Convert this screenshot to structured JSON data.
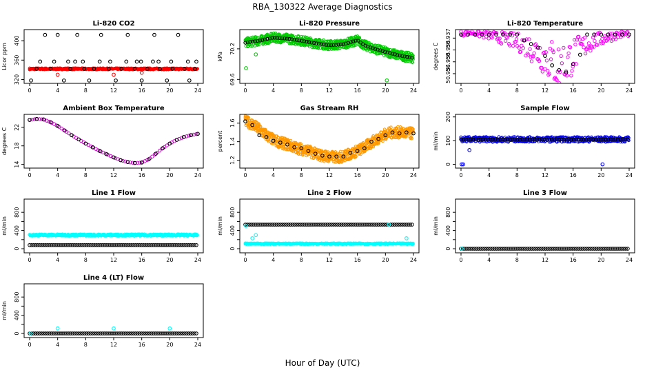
{
  "title": "RBA_130322  Average Diagnostics",
  "xlabel": "Hour of Day (UTC)",
  "chart_data": [
    {
      "type": "scatter",
      "title": "Li-820 CO2",
      "ylabel": "Licor ppm",
      "xlim": [
        0,
        24
      ],
      "ylim": [
        315,
        420
      ],
      "xticks": [
        0,
        4,
        8,
        12,
        16,
        20,
        24
      ],
      "yticks": [
        320,
        360,
        400
      ],
      "series": [
        {
          "color": "#ff0000",
          "kind": "band",
          "x_range": [
            0,
            24
          ],
          "center": 342,
          "width": 3
        },
        {
          "color": "#ff0000",
          "kind": "points",
          "x": [
            4,
            12,
            16
          ],
          "y": [
            330,
            330,
            334
          ]
        },
        {
          "color": "#000000",
          "kind": "points",
          "x": [
            0.2,
            1,
            2.2,
            3,
            4,
            4.9,
            5.8,
            6.8,
            7.8,
            8.5,
            9.2,
            10.2,
            11.3,
            12.3,
            13.1,
            14,
            15,
            16,
            16.8,
            17.8,
            18.6,
            19.6,
            20.4,
            21.2,
            22.1,
            22.8,
            23.6
          ],
          "y": [
            318,
            342,
            412,
            342,
            412,
            318,
            342,
            412,
            342,
            318,
            342,
            412,
            342,
            318,
            342,
            412,
            342,
            318,
            342,
            412,
            342,
            318,
            342,
            412,
            342,
            318,
            342
          ]
        },
        {
          "color": "#000000",
          "kind": "points",
          "x": [
            1.5,
            3.5,
            5.5,
            6.5,
            7.6,
            10,
            11.5,
            13.8,
            15.3,
            15.9,
            17.6,
            18.4,
            20.2,
            22.6,
            23.8
          ],
          "y": [
            357,
            357,
            357,
            357,
            357,
            357,
            357,
            357,
            357,
            357,
            357,
            357,
            357,
            357,
            357
          ]
        }
      ]
    },
    {
      "type": "scatter",
      "title": "Li-820 Pressure",
      "ylabel": "kPa",
      "xlim": [
        0,
        24
      ],
      "ylim": [
        69.55,
        70.55
      ],
      "xticks": [
        0,
        4,
        8,
        12,
        16,
        20,
        24
      ],
      "yticks": [
        69.6,
        70.2
      ],
      "tick_label_y": [
        69.6,
        70.2
      ],
      "series": [
        {
          "color": "#00cc00",
          "kind": "band",
          "x": [
            0,
            2,
            4,
            6,
            8,
            10,
            12,
            14,
            16,
            17,
            18,
            20,
            22,
            24
          ],
          "y": [
            70.32,
            70.36,
            70.42,
            70.4,
            70.36,
            70.31,
            70.27,
            70.29,
            70.37,
            70.27,
            70.22,
            70.14,
            70.07,
            70.02
          ],
          "width": 0.18
        },
        {
          "color": "#000000",
          "kind": "line",
          "x": [
            0,
            2,
            4,
            6,
            8,
            10,
            12,
            14,
            16,
            17,
            18,
            20,
            22,
            24
          ],
          "y": [
            70.32,
            70.36,
            70.42,
            70.4,
            70.36,
            70.31,
            70.27,
            70.29,
            70.37,
            70.27,
            70.22,
            70.14,
            70.07,
            70.02
          ]
        },
        {
          "color": "#00cc00",
          "kind": "points",
          "x": [
            0.1,
            1.5,
            20.2
          ],
          "y": [
            69.82,
            70.09,
            69.58
          ]
        }
      ]
    },
    {
      "type": "scatter",
      "title": "Li-820 Temperature",
      "ylabel": "degrees C",
      "xlim": [
        0,
        24
      ],
      "ylim": [
        50.9333,
        50.9376
      ],
      "xticks": [
        0,
        4,
        8,
        12,
        16,
        20,
        24
      ],
      "yticks": [
        50.934,
        50.935,
        50.936,
        50.937
      ],
      "tick_labels": [
        "50.934",
        "50.935",
        "50.936",
        "50.937"
      ],
      "series": [
        {
          "color": "#ff00ff",
          "kind": "scatter_cloud",
          "x_range": [
            0,
            24
          ],
          "x": [
            0,
            1.5,
            3,
            4,
            5,
            6,
            7,
            8,
            9,
            10,
            11,
            12,
            13,
            13.5,
            14,
            14.5,
            15,
            15.5,
            16,
            17,
            18,
            19,
            20,
            21,
            22,
            23,
            24
          ],
          "y": [
            50.9373,
            50.9374,
            50.9372,
            50.9371,
            50.9369,
            50.9368,
            50.9366,
            50.9364,
            50.9361,
            50.9357,
            50.9353,
            50.9348,
            50.9343,
            50.934,
            50.9336,
            50.9338,
            50.9341,
            50.9345,
            50.935,
            50.9356,
            50.9361,
            50.9365,
            50.9367,
            50.9369,
            50.9371,
            50.9372,
            50.9373
          ]
        },
        {
          "color": "#000000",
          "kind": "points",
          "x": [
            0,
            1,
            2,
            3,
            4,
            5,
            6,
            7,
            8,
            9,
            10,
            11,
            12,
            13,
            14,
            15,
            16,
            17,
            18,
            19,
            20,
            21,
            22,
            23,
            24
          ],
          "y": [
            50.9373,
            50.9373,
            50.9373,
            50.9373,
            50.9373,
            50.9373,
            50.9373,
            50.9373,
            50.9373,
            50.9368,
            50.9365,
            50.9362,
            50.9355,
            50.9347,
            50.9343,
            50.9341,
            50.9348,
            50.9356,
            50.9373,
            50.9373,
            50.9373,
            50.9373,
            50.9373,
            50.9373,
            50.9373
          ]
        }
      ]
    },
    {
      "type": "scatter",
      "title": "Ambient Box Temperature",
      "ylabel": "degrees C",
      "xlim": [
        0,
        24
      ],
      "ylim": [
        13.5,
        24.5
      ],
      "xticks": [
        0,
        4,
        8,
        12,
        16,
        20,
        24
      ],
      "yticks": [
        14,
        18,
        22
      ],
      "series": [
        {
          "color": "#cc00cc",
          "kind": "line",
          "x": [
            0,
            1,
            2,
            3,
            4,
            5,
            6,
            7,
            8,
            9,
            10,
            11,
            12,
            13,
            14,
            15,
            16,
            17,
            18,
            19,
            20,
            21,
            22,
            23,
            24
          ],
          "y": [
            23.6,
            23.8,
            23.7,
            23.1,
            22.3,
            21.3,
            20.3,
            19.4,
            18.5,
            17.7,
            16.9,
            16.2,
            15.5,
            14.9,
            14.5,
            14.3,
            14.4,
            15.1,
            16.3,
            17.5,
            18.5,
            19.3,
            19.9,
            20.3,
            20.6
          ]
        },
        {
          "color": "#000000",
          "kind": "points",
          "x": [
            0,
            1,
            2,
            3,
            4,
            5,
            6,
            7,
            8,
            9,
            10,
            11,
            12,
            13,
            14,
            15,
            16,
            17,
            18,
            19,
            20,
            21,
            22,
            23,
            24
          ],
          "y": [
            23.6,
            23.8,
            23.7,
            23.1,
            22.3,
            21.3,
            20.3,
            19.4,
            18.5,
            17.7,
            16.9,
            16.2,
            15.5,
            14.9,
            14.5,
            14.3,
            14.4,
            15.1,
            16.3,
            17.5,
            18.5,
            19.3,
            19.9,
            20.3,
            20.6
          ]
        }
      ]
    },
    {
      "type": "scatter",
      "title": "Gas Stream RH",
      "ylabel": "percent",
      "xlim": [
        0,
        24
      ],
      "ylim": [
        1.13,
        1.68
      ],
      "xticks": [
        0,
        4,
        8,
        12,
        16,
        20,
        24
      ],
      "yticks": [
        1.2,
        1.4,
        1.6
      ],
      "series": [
        {
          "color": "#ff9900",
          "kind": "band",
          "x": [
            0,
            1,
            2,
            3,
            4,
            5,
            6,
            7,
            8,
            9,
            10,
            11,
            12,
            13,
            14,
            15,
            16,
            17,
            18,
            19,
            20,
            21,
            22,
            23,
            24
          ],
          "y": [
            1.62,
            1.59,
            1.53,
            1.47,
            1.42,
            1.39,
            1.37,
            1.34,
            1.32,
            1.3,
            1.27,
            1.25,
            1.24,
            1.23,
            1.24,
            1.27,
            1.3,
            1.34,
            1.39,
            1.44,
            1.48,
            1.5,
            1.5,
            1.49,
            1.49
          ],
          "width": 0.12
        },
        {
          "color": "#000000",
          "kind": "points",
          "x": [
            0,
            1,
            2,
            3,
            4,
            5,
            6,
            7,
            8,
            9,
            10,
            11,
            12,
            13,
            14,
            15,
            16,
            17,
            18,
            19,
            20,
            21,
            22,
            23,
            24
          ],
          "y": [
            1.62,
            1.58,
            1.47,
            1.45,
            1.41,
            1.39,
            1.37,
            1.34,
            1.33,
            1.3,
            1.27,
            1.25,
            1.24,
            1.24,
            1.24,
            1.28,
            1.3,
            1.33,
            1.4,
            1.43,
            1.47,
            1.5,
            1.49,
            1.5,
            1.49
          ]
        }
      ]
    },
    {
      "type": "scatter",
      "title": "Sample Flow",
      "ylabel": "ml/min",
      "xlim": [
        0,
        24
      ],
      "ylim": [
        -10,
        205
      ],
      "xticks": [
        0,
        4,
        8,
        12,
        16,
        20,
        24
      ],
      "yticks": [
        0,
        100,
        200
      ],
      "series": [
        {
          "color": "#0000ff",
          "kind": "band",
          "x_range": [
            0,
            24
          ],
          "center": 105,
          "width": 22
        },
        {
          "color": "#000000",
          "kind": "line",
          "x_range": [
            0,
            24
          ],
          "center": 105
        },
        {
          "color": "#0000ff",
          "kind": "points",
          "x": [
            0.1,
            0.3,
            1.2,
            20.2
          ],
          "y": [
            0,
            0,
            60,
            0
          ]
        }
      ]
    },
    {
      "type": "scatter",
      "title": "Line 1 Flow",
      "ylabel": "ml/min",
      "xlim": [
        0,
        24
      ],
      "ylim": [
        -60,
        1060
      ],
      "xticks": [
        0,
        4,
        8,
        12,
        16,
        20,
        24
      ],
      "yticks": [
        0,
        200,
        400,
        600,
        800
      ],
      "tick_labels": [
        "0",
        "",
        "400",
        "",
        "800"
      ],
      "series": [
        {
          "color": "#00ffff",
          "kind": "band",
          "x_range": [
            0,
            24
          ],
          "center": 300,
          "width": 40
        },
        {
          "color": "#000000",
          "kind": "points_dense",
          "x_range": [
            0,
            24
          ],
          "center": 80
        }
      ]
    },
    {
      "type": "scatter",
      "title": "Line 2 Flow",
      "ylabel": "ml/min",
      "xlim": [
        0,
        24
      ],
      "ylim": [
        -60,
        1060
      ],
      "xticks": [
        0,
        4,
        8,
        12,
        16,
        20,
        24
      ],
      "yticks": [
        0,
        200,
        400,
        600,
        800
      ],
      "tick_labels": [
        "0",
        "",
        "400",
        "",
        "800"
      ],
      "series": [
        {
          "color": "#00ffff",
          "kind": "band",
          "x_range": [
            0,
            24
          ],
          "center": 110,
          "width": 25
        },
        {
          "color": "#000000",
          "kind": "points_dense",
          "x_range": [
            0,
            24
          ],
          "center": 530
        },
        {
          "color": "#00ffff",
          "kind": "points",
          "x": [
            0.1,
            1.0,
            1.5,
            20.5,
            23.0
          ],
          "y": [
            500,
            230,
            300,
            530,
            230
          ]
        }
      ]
    },
    {
      "type": "scatter",
      "title": "Line 3 Flow",
      "ylabel": "ml/min",
      "xlim": [
        0,
        24
      ],
      "ylim": [
        -60,
        1060
      ],
      "xticks": [
        0,
        4,
        8,
        12,
        16,
        20,
        24
      ],
      "yticks": [
        0,
        200,
        400,
        600,
        800
      ],
      "tick_labels": [
        "0",
        "",
        "400",
        "",
        "800"
      ],
      "series": [
        {
          "color": "#000000",
          "kind": "points_dense",
          "x_range": [
            0,
            24
          ],
          "center": 0
        },
        {
          "color": "#00ffff",
          "kind": "points",
          "x": [
            0.1
          ],
          "y": [
            0
          ]
        }
      ]
    },
    {
      "type": "scatter",
      "title": "Line 4 (LT) Flow",
      "ylabel": "ml/min",
      "xlim": [
        0,
        24
      ],
      "ylim": [
        -60,
        1060
      ],
      "xticks": [
        0,
        4,
        8,
        12,
        16,
        20,
        24
      ],
      "yticks": [
        0,
        200,
        400,
        600,
        800
      ],
      "tick_labels": [
        "0",
        "",
        "400",
        "",
        "800"
      ],
      "series": [
        {
          "color": "#000000",
          "kind": "points_dense",
          "x_range": [
            0,
            24
          ],
          "center": 0
        },
        {
          "color": "#00ffff",
          "kind": "points",
          "x": [
            0.1,
            4,
            12,
            20
          ],
          "y": [
            0,
            110,
            110,
            110
          ]
        }
      ]
    }
  ]
}
